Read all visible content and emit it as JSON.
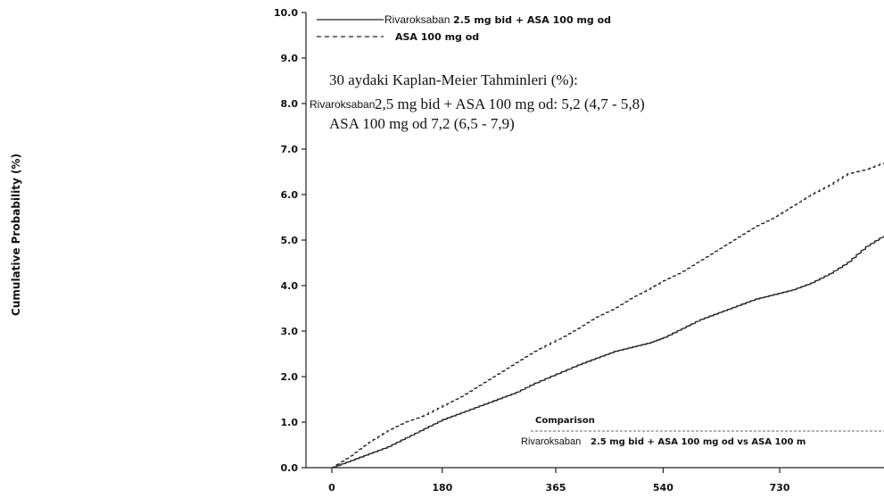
{
  "chart_data": {
    "type": "line",
    "ylabel": "Cumulative Probability (%)",
    "xlabel": "",
    "ylim": [
      0,
      10
    ],
    "xlim": [
      0,
      900
    ],
    "y_ticks": [
      "0.0",
      "1.0",
      "2.0",
      "3.0",
      "4.0",
      "5.0",
      "6.0",
      "7.0",
      "8.0",
      "9.0",
      "10.0"
    ],
    "x_ticks": [
      "0",
      "180",
      "365",
      "540",
      "730"
    ],
    "x_tick_values": [
      0,
      180,
      365,
      540,
      730
    ],
    "legend": [
      {
        "prefix": "Rivaroksaban",
        "label": "2.5 mg bid + ASA 100 mg od",
        "style": "solid"
      },
      {
        "prefix": "",
        "label": "ASA 100 mg od",
        "style": "dashed"
      }
    ],
    "series": [
      {
        "name": "Rivaroksaban 2.5 mg bid + ASA 100 mg od",
        "style": "solid",
        "color": "#222222",
        "x": [
          0,
          30,
          60,
          90,
          120,
          150,
          180,
          210,
          240,
          270,
          300,
          330,
          365,
          400,
          430,
          460,
          490,
          520,
          540,
          570,
          600,
          630,
          660,
          690,
          720,
          750,
          780,
          810,
          840,
          870,
          900
        ],
        "y": [
          0.0,
          0.15,
          0.3,
          0.45,
          0.65,
          0.85,
          1.05,
          1.2,
          1.35,
          1.5,
          1.65,
          1.85,
          2.05,
          2.25,
          2.4,
          2.55,
          2.65,
          2.75,
          2.85,
          3.05,
          3.25,
          3.4,
          3.55,
          3.7,
          3.8,
          3.9,
          4.05,
          4.25,
          4.5,
          4.85,
          5.1
        ]
      },
      {
        "name": "ASA 100 mg od",
        "style": "dashed",
        "color": "#222222",
        "x": [
          0,
          30,
          60,
          90,
          120,
          150,
          180,
          210,
          240,
          270,
          300,
          330,
          365,
          400,
          430,
          460,
          490,
          520,
          540,
          570,
          600,
          630,
          660,
          690,
          720,
          750,
          780,
          810,
          840,
          870,
          900
        ],
        "y": [
          0.0,
          0.25,
          0.55,
          0.8,
          1.0,
          1.15,
          1.35,
          1.55,
          1.8,
          2.05,
          2.3,
          2.55,
          2.8,
          3.05,
          3.3,
          3.5,
          3.75,
          3.95,
          4.1,
          4.3,
          4.55,
          4.8,
          5.05,
          5.3,
          5.5,
          5.75,
          6.0,
          6.2,
          6.45,
          6.55,
          6.7
        ]
      }
    ]
  },
  "annotation": {
    "heading": "30 aydaki Kaplan-Meier Tahminleri (%):",
    "line1_prefix": "Rivaroksaban",
    "line1": "2,5 mg bid + ASA 100 mg od: 5,2 (4,7 - 5,8)",
    "line2": "ASA 100 mg od 7,2 (6,5 - 7,9)"
  },
  "comparison": {
    "title": "Comparison",
    "row_prefix": "Rivaroksaban",
    "row": "2.5 mg bid + ASA 100 mg od vs ASA 100 m"
  }
}
